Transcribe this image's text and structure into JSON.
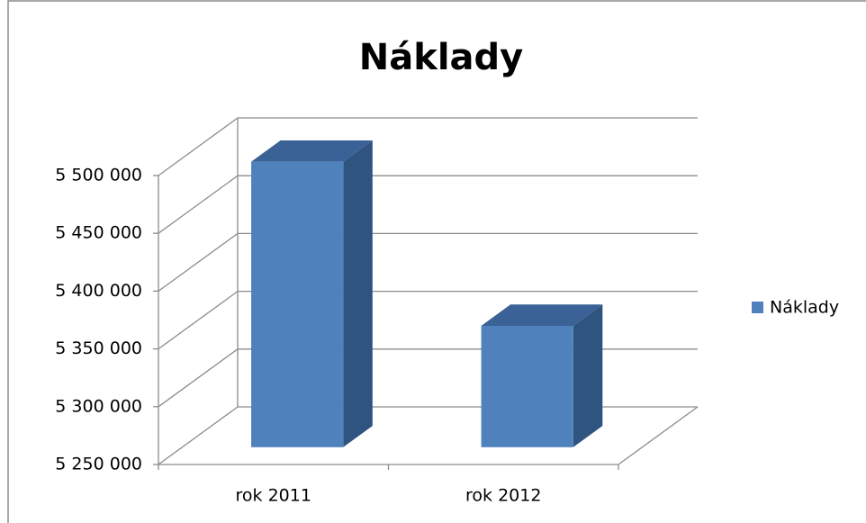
{
  "chart_data": {
    "type": "bar3d",
    "title": "Náklady",
    "categories": [
      "rok 2011",
      "rok 2012"
    ],
    "series": [
      {
        "name": "Náklady",
        "color": "#4f81bd",
        "values": [
          5497000,
          5355000
        ]
      }
    ],
    "ylim": [
      5250000,
      5500000
    ],
    "yticks": [
      {
        "value": 5250000,
        "label": "5 250 000"
      },
      {
        "value": 5300000,
        "label": "5 300 000"
      },
      {
        "value": 5350000,
        "label": "5 350 000"
      },
      {
        "value": 5400000,
        "label": "5 400 000"
      },
      {
        "value": 5450000,
        "label": "5 450 000"
      },
      {
        "value": 5500000,
        "label": "5 500 000"
      }
    ],
    "grid": true,
    "legend": "right"
  }
}
